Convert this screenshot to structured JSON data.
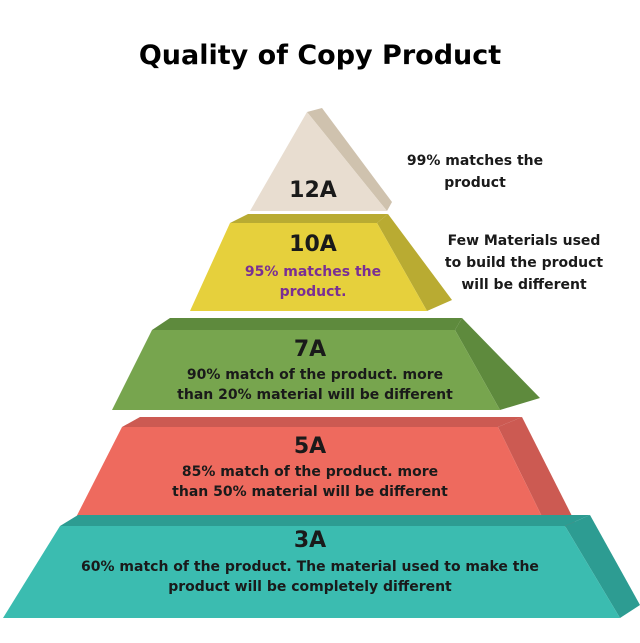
{
  "title": "Quality of Copy Product",
  "levels": [
    {
      "grade": "12A",
      "color": "#e8ddd0",
      "side_color": "#cfc2ae",
      "description": "",
      "side_note": "99%  matches the product"
    },
    {
      "grade": "10A",
      "color": "#e6d03c",
      "side_color": "#b9ab32",
      "description": "95% matches the product.",
      "description_color": "#7a2f94",
      "side_note": "Few Materials used to build the product will be different"
    },
    {
      "grade": "7A",
      "color": "#77a54e",
      "side_color": "#5e8a3d",
      "description": "90% match of the product. more than 20% material will be different"
    },
    {
      "grade": "5A",
      "color": "#ee6a5e",
      "side_color": "#cc5a52",
      "description": "85% match of the product. more than 50% material will be different"
    },
    {
      "grade": "3A",
      "color": "#3bbcb0",
      "side_color": "#2d9c92",
      "description": "60% match of the product. The material used to make the product will be completely different"
    }
  ]
}
